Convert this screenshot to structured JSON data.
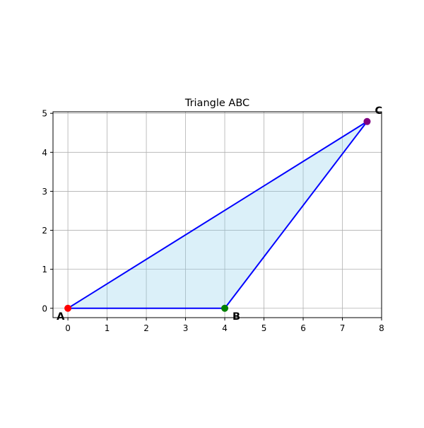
{
  "chart_data": {
    "type": "scatter",
    "title": "Triangle ABC",
    "xlabel": "",
    "ylabel": "",
    "xlim": [
      -0.38,
      8.0
    ],
    "ylim": [
      -0.24,
      5.04
    ],
    "xticks": [
      0,
      1,
      2,
      3,
      4,
      5,
      6,
      7,
      8
    ],
    "yticks": [
      0,
      1,
      2,
      3,
      4,
      5
    ],
    "grid": true,
    "points": [
      {
        "label": "A",
        "x": 0,
        "y": 0,
        "color": "#ff0000"
      },
      {
        "label": "B",
        "x": 4,
        "y": 0,
        "color": "#008000"
      },
      {
        "label": "C",
        "x": 7.63,
        "y": 4.79,
        "color": "#800080"
      }
    ],
    "triangle": {
      "edge_color": "#0000ff",
      "fill_color": "#87ceeb",
      "fill_opacity": 0.3
    }
  }
}
